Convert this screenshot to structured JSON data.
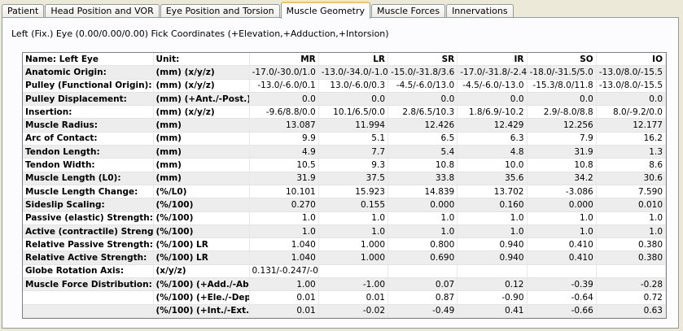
{
  "tabs": [
    "Patient",
    "Head Position and VOR",
    "Eye Position and Torsion",
    "Muscle Geometry",
    "Muscle Forces",
    "Innervations"
  ],
  "active_tab": "Muscle Geometry",
  "heading": "Left (Fix.) Eye (0.00/0.00/0.00) Fick Coordinates (+Elevation,+Adduction,+Intorsion)",
  "table": {
    "header": [
      "Name: Left Eye",
      "Unit:",
      "MR",
      "LR",
      "SR",
      "IR",
      "SO",
      "IO"
    ],
    "rows": [
      [
        "Anatomic Origin:",
        "(mm) (x/y/z)",
        "-17.0/-30.0/1.0",
        "-13.0/-34.0/-1.0",
        "-15.0/-31.8/3.6",
        "-17.0/-31.8/-2.4",
        "-18.0/-31.5/5.0",
        "-13.0/8.0/-15.5"
      ],
      [
        "Pulley (Functional Origin):",
        "(mm) (x/y/z)",
        "-13.0/-6.0/0.1",
        "13.0/-6.0/0.3",
        "-4.5/-6.0/13.0",
        "-4.5/-6.0/-13.0",
        "-15.3/8.0/11.8",
        "-13.0/8.0/-15.5"
      ],
      [
        "Pulley Displacement:",
        "(mm) (+Ant./-Post.)",
        "0.0",
        "0.0",
        "0.0",
        "0.0",
        "0.0",
        "0.0"
      ],
      [
        "Insertion:",
        "(mm) (x/y/z)",
        "-9.6/8.8/0.0",
        "10.1/6.5/0.0",
        "2.8/6.5/10.3",
        "1.8/6.9/-10.2",
        "2.9/-8.0/8.8",
        "8.0/-9.2/0.0"
      ],
      [
        "Muscle Radius:",
        "(mm)",
        "13.087",
        "11.994",
        "12.426",
        "12.429",
        "12.256",
        "12.177"
      ],
      [
        "Arc of Contact:",
        "(mm)",
        "9.9",
        "5.1",
        "6.5",
        "6.3",
        "7.9",
        "16.2"
      ],
      [
        "Tendon Length:",
        "(mm)",
        "4.9",
        "7.7",
        "5.4",
        "4.8",
        "31.9",
        "1.3"
      ],
      [
        "Tendon Width:",
        "(mm)",
        "10.5",
        "9.3",
        "10.8",
        "10.0",
        "10.8",
        "8.6"
      ],
      [
        "Muscle Length (L0):",
        "(mm)",
        "31.9",
        "37.5",
        "33.8",
        "35.6",
        "34.2",
        "30.6"
      ],
      [
        "Muscle Length Change:",
        "(%/L0)",
        "10.101",
        "15.923",
        "14.839",
        "13.702",
        "-3.086",
        "7.590"
      ],
      [
        "Sideslip Scaling:",
        "(%/100)",
        "0.270",
        "0.155",
        "0.000",
        "0.160",
        "0.000",
        "0.010"
      ],
      [
        "Passive (elastic) Strength:",
        "(%/100)",
        "1.0",
        "1.0",
        "1.0",
        "1.0",
        "1.0",
        "1.0"
      ],
      [
        "Active (contractile) Strength:",
        "(%/100)",
        "1.0",
        "1.0",
        "1.0",
        "1.0",
        "1.0",
        "1.0"
      ],
      [
        "Relative Passive Strength:",
        "(%/100) LR",
        "1.040",
        "1.000",
        "0.800",
        "0.940",
        "0.410",
        "0.380"
      ],
      [
        "Relative Active Strength:",
        "(%/100) LR",
        "1.040",
        "1.000",
        "0.690",
        "0.940",
        "0.410",
        "0.380"
      ],
      [
        "Globe Rotation Axis:",
        "(x/y/z)",
        "0.131/-0.247/-0.960",
        "",
        "",
        "",
        "",
        ""
      ],
      [
        "Muscle Force Distribution:",
        "(%/100) (+Add./-Abd.)",
        "1.00",
        "-1.00",
        "0.07",
        "0.12",
        "-0.39",
        "-0.28"
      ],
      [
        "",
        "(%/100) (+Ele./-Dep.)",
        "0.01",
        "0.01",
        "0.87",
        "-0.90",
        "-0.64",
        "0.72"
      ],
      [
        "",
        "(%/100) (+Int./-Ext.)",
        "0.01",
        "-0.02",
        "-0.49",
        "0.41",
        "-0.66",
        "0.63"
      ]
    ]
  }
}
